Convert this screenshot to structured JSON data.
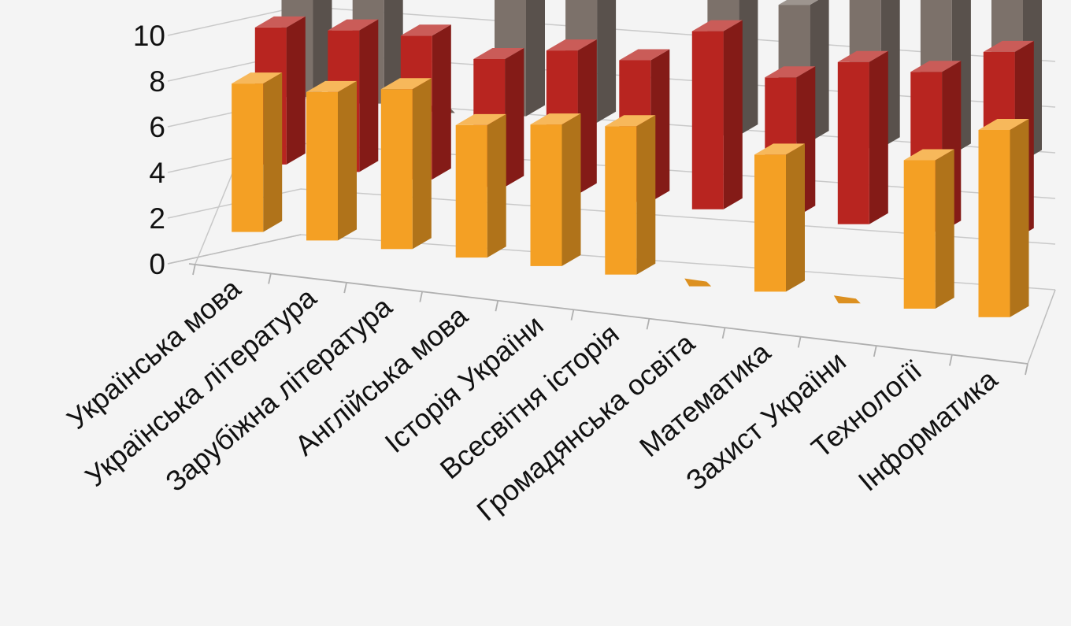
{
  "chart_data": {
    "type": "bar",
    "style": "3d-clustered-columns",
    "title": "",
    "xlabel": "",
    "ylabel": "",
    "ylim": [
      0,
      10
    ],
    "yticks": [
      0,
      2,
      4,
      6,
      8,
      10
    ],
    "grid": true,
    "legend": "none",
    "categories": [
      "Українська мова",
      "Українська література",
      "Зарубіжна література",
      "Англійська мова",
      "Історія України",
      "Всесвітня історія",
      "Громадянська освіта",
      "Математика",
      "Захист  України",
      "Технології",
      "Інформатика"
    ],
    "series": [
      {
        "color": "#f4a024",
        "values": [
          6.5,
          6.5,
          7.0,
          5.8,
          6.2,
          6.5,
          0.0,
          6.0,
          0.0,
          6.5,
          8.2
        ]
      },
      {
        "color": "#b82520",
        "values": [
          6.0,
          6.2,
          6.3,
          5.6,
          6.3,
          6.2,
          7.8,
          6.1,
          7.1,
          7.0,
          8.2
        ]
      },
      {
        "color": "#7c716a",
        "values": [
          7.0,
          7.0,
          0.0,
          6.5,
          7.2,
          0.0,
          7.5,
          6.0,
          7.0,
          7.1,
          7.5
        ]
      }
    ]
  }
}
